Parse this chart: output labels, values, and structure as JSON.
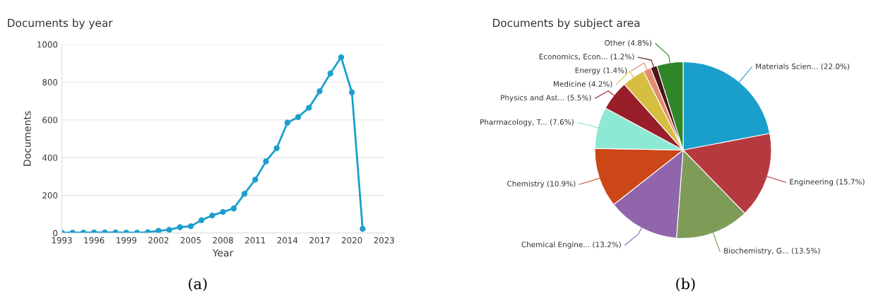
{
  "chart_data": [
    {
      "type": "line",
      "title": "Documents by year",
      "xlabel": "Year",
      "ylabel": "Documents",
      "x": [
        1993,
        1994,
        1995,
        1996,
        1997,
        1998,
        1999,
        2000,
        2001,
        2002,
        2003,
        2004,
        2005,
        2006,
        2007,
        2008,
        2009,
        2010,
        2011,
        2012,
        2013,
        2014,
        2015,
        2016,
        2017,
        2018,
        2019,
        2020,
        2021
      ],
      "series": [
        {
          "color": "#1a9fcc",
          "values": [
            2,
            2,
            2,
            3,
            3,
            3,
            2,
            2,
            4,
            12,
            17,
            31,
            36,
            68,
            93,
            112,
            130,
            208,
            283,
            380,
            450,
            585,
            615,
            664,
            752,
            846,
            932,
            746,
            22
          ]
        }
      ],
      "xlim": [
        1993,
        2023
      ],
      "xticks": [
        1993,
        1996,
        1999,
        2002,
        2005,
        2008,
        2011,
        2014,
        2017,
        2020,
        2023
      ],
      "ylim": [
        0,
        1000
      ],
      "yticks": [
        0,
        200,
        400,
        600,
        800,
        1000
      ],
      "grid": "y",
      "marker": "circle",
      "line_style": "solid",
      "annotations": [
        "(a)"
      ]
    },
    {
      "type": "pie",
      "title": "Documents by subject area",
      "categories": [
        "Materials Scien... (22.0%)",
        "Engineering (15.7%)",
        "Biochemistry, G... (13.5%)",
        "Chemical Engine... (13.2%)",
        "Chemistry (10.9%)",
        "Pharmacology, T... (7.6%)",
        "Physics and Ast... (5.5%)",
        "Medicine (4.2%)",
        "Energy (1.4%)",
        "Economics, Econ... (1.2%)",
        "Other (4.8%)"
      ],
      "values": [
        22.0,
        15.7,
        13.5,
        13.2,
        10.9,
        7.6,
        5.5,
        4.2,
        1.4,
        1.2,
        4.8
      ],
      "colors": [
        "#1a9fcc",
        "#b5393f",
        "#7e9c57",
        "#9065ab",
        "#cc4718",
        "#8de8d4",
        "#981f2a",
        "#d6be40",
        "#e38c6e",
        "#4e1519",
        "#2e8627"
      ],
      "annotations": [
        "(b)"
      ]
    }
  ]
}
